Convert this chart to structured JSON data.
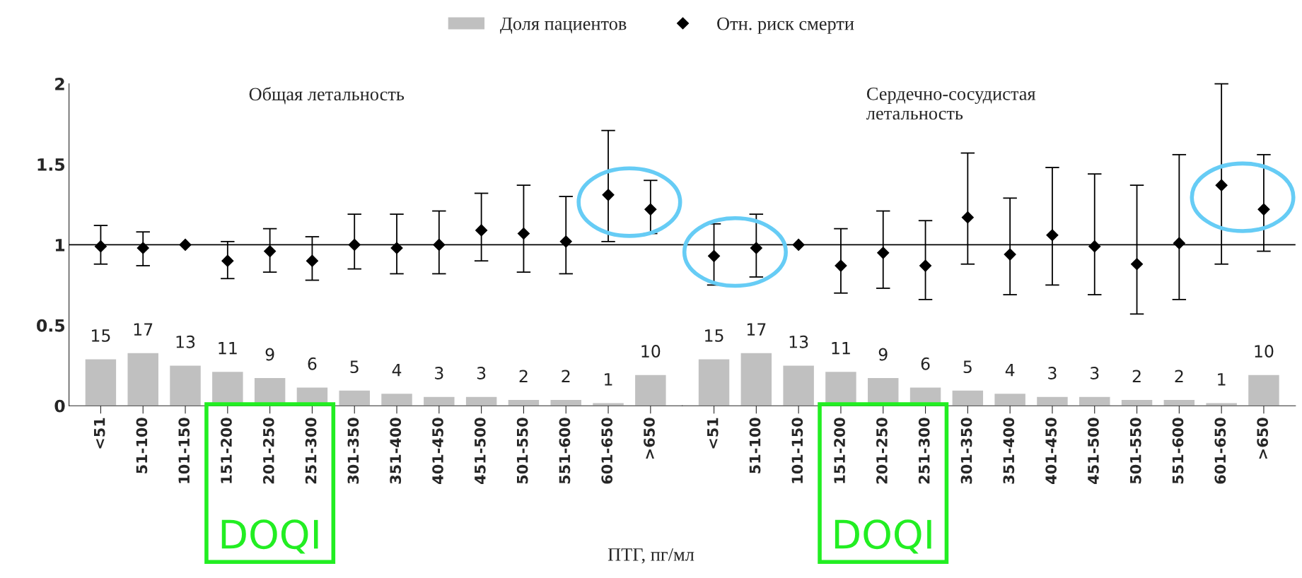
{
  "chart_data": [
    {
      "type": "bar",
      "title": "Общая летальность",
      "xlabel": "ПТГ, пг/мл",
      "legend": "top",
      "categories": [
        "<51",
        "51-100",
        "101-150",
        "151-200",
        "201-250",
        "251-300",
        "301-350",
        "351-400",
        "401-450",
        "451-500",
        "501-550",
        "551-600",
        "601-650",
        ">650"
      ],
      "ylim": [
        0,
        2
      ],
      "yticks": [
        0,
        0.5,
        1,
        1.5,
        2
      ],
      "y2lim": [
        0,
        103
      ],
      "tick_labels": "xy",
      "series": [
        {
          "name": "Доля пациентов",
          "axis": "y2",
          "color": "#c0c0c0",
          "values": [
            15,
            17,
            13,
            11,
            9,
            6,
            5,
            4,
            3,
            3,
            2,
            2,
            1,
            10
          ],
          "value_labels": [
            "15",
            "17",
            "13",
            "11",
            "9",
            "6",
            "5",
            "4",
            "3",
            "3",
            "2",
            "2",
            "1",
            "10"
          ]
        },
        {
          "name": "Отн. риск смерти",
          "type": "scatter",
          "marker": "diamond",
          "color": "#000000",
          "values": [
            0.99,
            0.98,
            1.0,
            0.9,
            0.96,
            0.9,
            1.0,
            0.98,
            1.0,
            1.09,
            1.07,
            1.02,
            1.31,
            1.22
          ],
          "errors": [
            [
              0.88,
              1.12
            ],
            [
              0.87,
              1.08
            ],
            null,
            [
              0.79,
              1.02
            ],
            [
              0.83,
              1.1
            ],
            [
              0.78,
              1.05
            ],
            [
              0.85,
              1.19
            ],
            [
              0.82,
              1.19
            ],
            [
              0.82,
              1.21
            ],
            [
              0.9,
              1.32
            ],
            [
              0.83,
              1.37
            ],
            [
              0.82,
              1.3
            ],
            [
              1.02,
              1.71
            ],
            [
              1.07,
              1.4
            ]
          ]
        }
      ],
      "ref_lines": [
        {
          "axis": "y",
          "value": 1,
          "color": "#000000"
        }
      ],
      "annotations": [
        "DOQI"
      ]
    },
    {
      "type": "bar",
      "title": "Сердечно-сосудистая\nлетальность",
      "tick_labels": "x",
      "categories": [
        "<51",
        "51-100",
        "101-150",
        "151-200",
        "201-250",
        "251-300",
        "301-350",
        "351-400",
        "401-450",
        "451-500",
        "501-550",
        "551-600",
        "601-650",
        ">650"
      ],
      "ylim": [
        0,
        2
      ],
      "series": [
        {
          "axis": "y2",
          "color": "#c0c0c0",
          "values": [
            15,
            17,
            13,
            11,
            9,
            6,
            5,
            4,
            3,
            3,
            2,
            2,
            1,
            10
          ],
          "value_labels": [
            "15",
            "17",
            "13",
            "11",
            "9",
            "6",
            "5",
            "4",
            "3",
            "3",
            "2",
            "2",
            "1",
            "10"
          ]
        },
        {
          "type": "scatter",
          "marker": "diamond",
          "color": "#000000",
          "values": [
            0.93,
            0.98,
            1.0,
            0.87,
            0.95,
            0.87,
            1.17,
            0.94,
            1.06,
            0.99,
            0.88,
            1.01,
            1.37,
            1.22
          ],
          "errors": [
            [
              0.75,
              1.13
            ],
            [
              0.8,
              1.19
            ],
            null,
            [
              0.7,
              1.1
            ],
            [
              0.73,
              1.21
            ],
            [
              0.66,
              1.15
            ],
            [
              0.88,
              1.57
            ],
            [
              0.69,
              1.29
            ],
            [
              0.75,
              1.48
            ],
            [
              0.69,
              1.44
            ],
            [
              0.57,
              1.37
            ],
            [
              0.66,
              1.56
            ],
            [
              0.88,
              2.0
            ],
            [
              0.96,
              1.56
            ]
          ]
        }
      ],
      "ref_lines": [
        {
          "axis": "y",
          "value": 1,
          "color": "#000000"
        }
      ],
      "annotations": [
        "DOQI"
      ]
    }
  ]
}
